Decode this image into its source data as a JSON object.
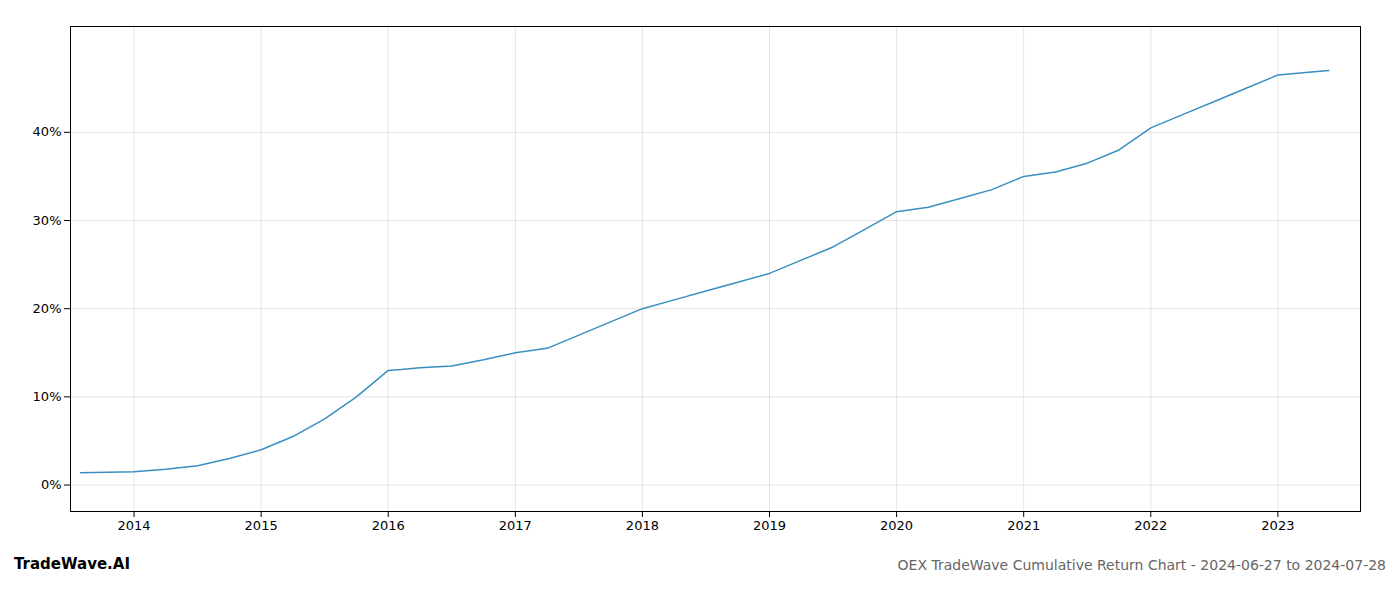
{
  "chart_data": {
    "type": "line",
    "title": "OEX TradeWave Cumulative Return Chart - 2024-06-27 to 2024-07-28",
    "annotations": [
      "TradeWave.AI"
    ],
    "x": [
      2013.58,
      2014.0,
      2014.25,
      2014.5,
      2014.75,
      2015.0,
      2015.25,
      2015.5,
      2015.75,
      2016.0,
      2016.1,
      2016.25,
      2016.5,
      2016.75,
      2017.0,
      2017.25,
      2017.5,
      2017.75,
      2018.0,
      2018.25,
      2018.5,
      2018.75,
      2019.0,
      2019.25,
      2019.5,
      2019.75,
      2020.0,
      2020.25,
      2020.5,
      2020.75,
      2021.0,
      2021.25,
      2021.5,
      2021.75,
      2022.0,
      2022.25,
      2022.5,
      2022.75,
      2023.0,
      2023.4
    ],
    "values": [
      1.4,
      1.5,
      1.8,
      2.2,
      3.0,
      4.0,
      5.5,
      7.5,
      10.0,
      13.0,
      13.1,
      13.3,
      13.5,
      14.2,
      15.0,
      15.5,
      17.0,
      18.5,
      20.0,
      21.0,
      22.0,
      23.0,
      24.0,
      25.5,
      27.0,
      29.0,
      31.0,
      31.5,
      32.5,
      33.5,
      35.0,
      35.5,
      36.5,
      38.0,
      40.5,
      42.0,
      43.5,
      45.0,
      46.5,
      47.0
    ],
    "color": "#3a8fc2",
    "xlim": [
      2013.5,
      2023.65
    ],
    "xticks": [
      2014,
      2015,
      2016,
      2017,
      2018,
      2019,
      2020,
      2021,
      2022,
      2023
    ],
    "ylim": [
      -3,
      52
    ],
    "yticks": [
      {
        "value": 0,
        "label": "0%"
      },
      {
        "value": 10,
        "label": "10%"
      },
      {
        "value": 20,
        "label": "20%"
      },
      {
        "value": 30,
        "label": "30%"
      },
      {
        "value": 40,
        "label": "40%"
      }
    ],
    "grid": true
  }
}
